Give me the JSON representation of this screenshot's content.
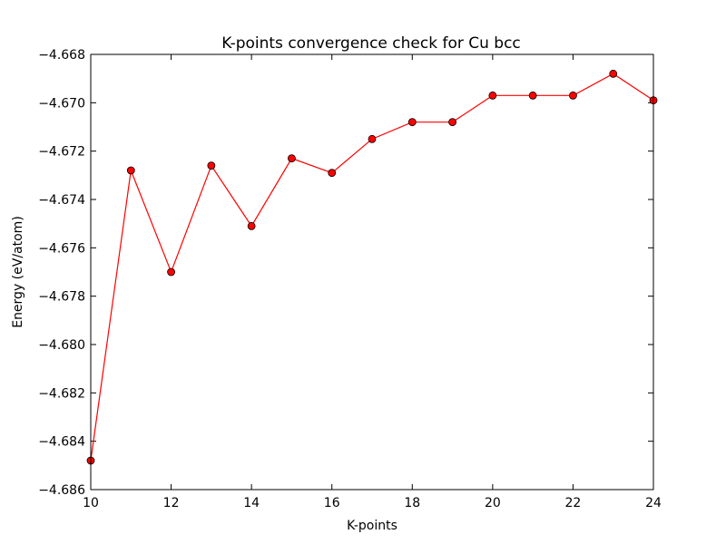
{
  "chart_data": {
    "type": "line",
    "title": "K-points convergence check for Cu bcc",
    "xlabel": "K-points",
    "ylabel": "Energy (eV/atom)",
    "xlim": [
      10,
      24
    ],
    "ylim": [
      -4.686,
      -4.668
    ],
    "xticks": [
      10,
      12,
      14,
      16,
      18,
      20,
      22,
      24
    ],
    "xtick_labels": [
      "10",
      "12",
      "14",
      "16",
      "18",
      "20",
      "22",
      "24"
    ],
    "yticks": [
      -4.686,
      -4.684,
      -4.682,
      -4.68,
      -4.678,
      -4.676,
      -4.674,
      -4.672,
      -4.67,
      -4.668
    ],
    "ytick_labels": [
      "−4.686",
      "−4.684",
      "−4.682",
      "−4.680",
      "−4.678",
      "−4.676",
      "−4.674",
      "−4.672",
      "−4.670",
      "−4.668"
    ],
    "grid": false,
    "legend": "none",
    "series": [
      {
        "color": "#ff0000",
        "marker": "circle",
        "x": [
          10,
          11,
          12,
          13,
          14,
          15,
          16,
          17,
          18,
          19,
          20,
          21,
          22,
          23,
          24
        ],
        "y": [
          -4.6848,
          -4.6728,
          -4.677,
          -4.6726,
          -4.6751,
          -4.6723,
          -4.6729,
          -4.6715,
          -4.6708,
          -4.6708,
          -4.6697,
          -4.6697,
          -4.6697,
          -4.6688,
          -4.6699
        ]
      }
    ]
  }
}
